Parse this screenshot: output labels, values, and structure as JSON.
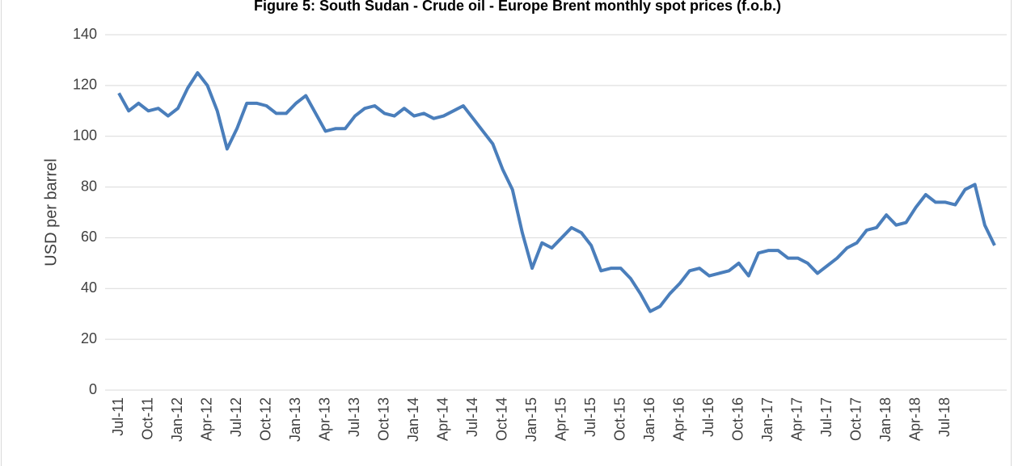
{
  "chart_data": {
    "type": "line",
    "title": "Figure 5: South Sudan - Crude oil - Europe Brent monthly spot prices (f.o.b.)",
    "y_label": "USD per barrel",
    "categories": [
      "Jul-11",
      null,
      null,
      "Oct-11",
      null,
      null,
      "Jan-12",
      null,
      null,
      "Apr-12",
      null,
      null,
      "Jul-12",
      null,
      null,
      "Oct-12",
      null,
      null,
      "Jan-13",
      null,
      null,
      "Apr-13",
      null,
      null,
      "Jul-13",
      null,
      null,
      "Oct-13",
      null,
      null,
      "Jan-14",
      null,
      null,
      "Apr-14",
      null,
      null,
      "Jul-14",
      null,
      null,
      "Oct-14",
      null,
      null,
      "Jan-15",
      null,
      null,
      "Apr-15",
      null,
      null,
      "Jul-15",
      null,
      null,
      "Oct-15",
      null,
      null,
      "Jan-16",
      null,
      null,
      "Apr-16",
      null,
      null,
      "Jul-16",
      null,
      null,
      "Oct-16",
      null,
      null,
      "Jan-17",
      null,
      null,
      "Apr-17",
      null,
      null,
      "Jul-17",
      null,
      null,
      "Oct-17",
      null,
      null,
      "Jan-18",
      null,
      null,
      "Apr-18",
      null,
      null,
      "Jul-18",
      null,
      null,
      null,
      null,
      null
    ],
    "values": [
      117,
      110,
      113,
      110,
      111,
      108,
      111,
      119,
      125,
      120,
      110,
      95,
      103,
      113,
      113,
      112,
      109,
      109,
      113,
      116,
      109,
      102,
      103,
      103,
      108,
      111,
      112,
      109,
      108,
      111,
      108,
      109,
      107,
      108,
      110,
      112,
      107,
      102,
      97,
      87,
      79,
      62,
      48,
      58,
      56,
      60,
      64,
      62,
      57,
      47,
      48,
      48,
      44,
      38,
      31,
      33,
      38,
      42,
      47,
      48,
      45,
      46,
      47,
      50,
      45,
      54,
      55,
      55,
      52,
      52,
      50,
      46,
      49,
      52,
      56,
      58,
      63,
      64,
      69,
      65,
      66,
      72,
      77,
      74,
      74,
      73,
      79,
      81,
      65,
      57
    ],
    "color": "#4a7ebb",
    "ylim": [
      0,
      140
    ],
    "yticks": [
      0,
      20,
      40,
      60,
      80,
      100,
      120,
      140
    ],
    "grid": true
  }
}
